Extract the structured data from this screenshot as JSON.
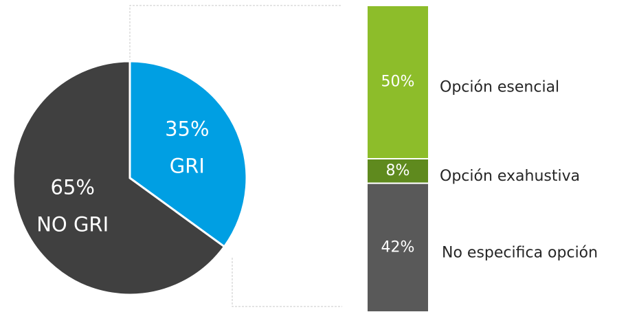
{
  "chart_data": [
    {
      "type": "pie",
      "categories": [
        "GRI",
        "NO GRI"
      ],
      "values": [
        35,
        65
      ],
      "value_labels": [
        "35%",
        "65%"
      ],
      "colors": [
        "#009fe3",
        "#404040"
      ]
    },
    {
      "type": "bar",
      "categories": [
        "Opción esencial",
        "Opción exahustiva",
        "No especifica opción"
      ],
      "values": [
        50,
        8,
        42
      ],
      "value_labels": [
        "50%",
        "8%",
        "42%"
      ],
      "colors": [
        "#8dbd2a",
        "#5f8a1e",
        "#595959"
      ],
      "stacked": true
    }
  ]
}
